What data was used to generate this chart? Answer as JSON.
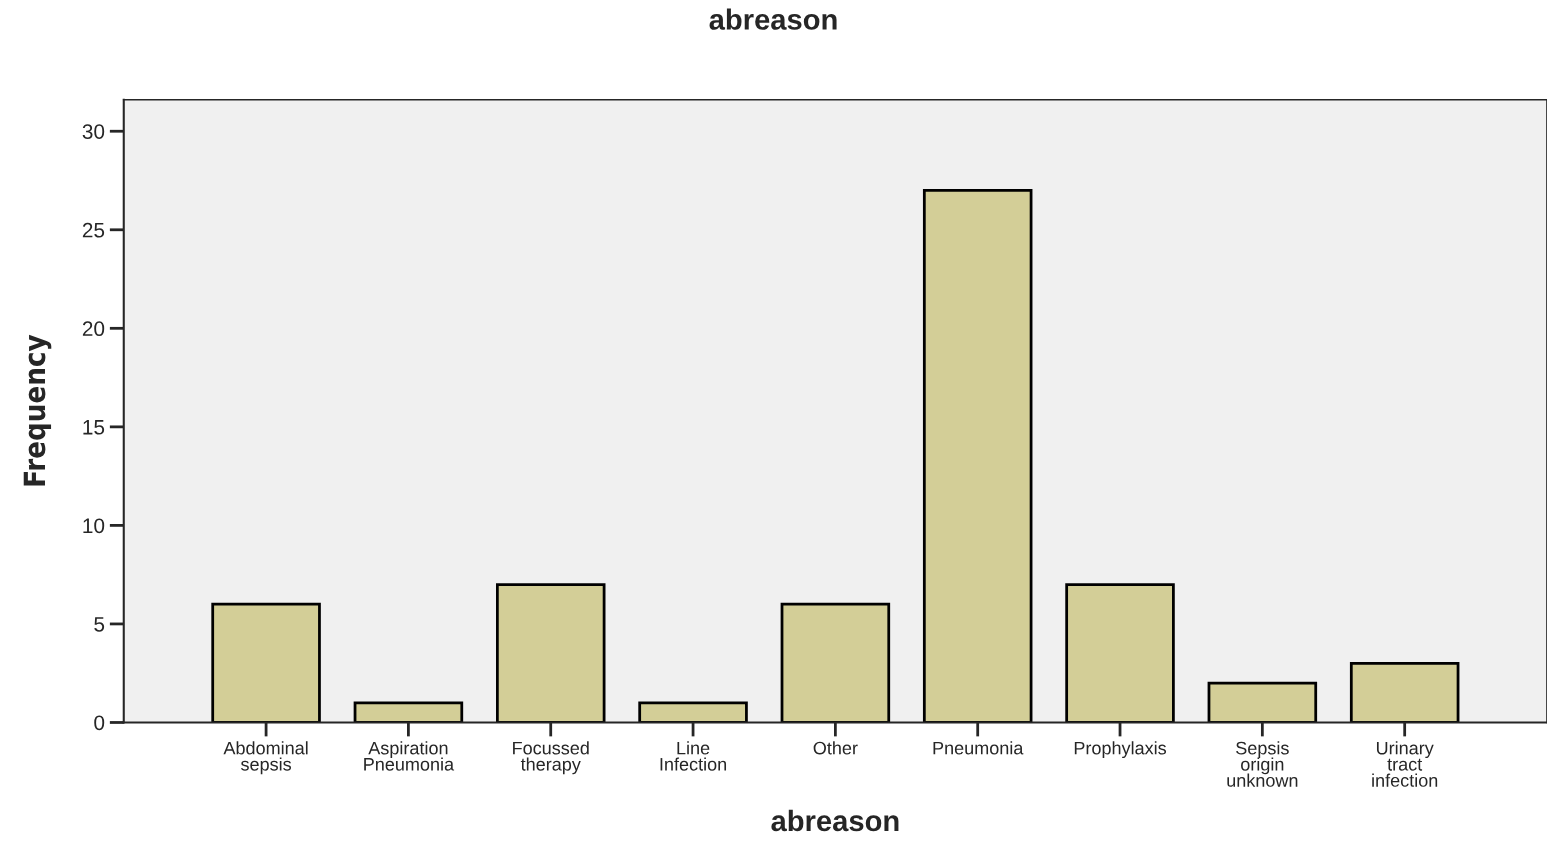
{
  "chart_data": {
    "type": "bar",
    "title": "abreason",
    "xlabel": "abreason",
    "ylabel": "Frequency",
    "categories": [
      "Abdominal\nsepsis",
      "Aspiration\nPneumonia",
      "Focussed\ntherapy",
      "Line\nInfection",
      "Other",
      "Pneumonia",
      "Prophylaxis",
      "Sepsis\norigin\nunknown",
      "Urinary\ntract\ninfection"
    ],
    "values": [
      6,
      1,
      7,
      1,
      6,
      27,
      7,
      2,
      3
    ],
    "color": "#d3ce97",
    "ylim": [
      0,
      31.6
    ],
    "yticks": [
      0,
      5,
      10,
      15,
      20,
      25,
      30
    ],
    "grid": false,
    "legend": false
  }
}
